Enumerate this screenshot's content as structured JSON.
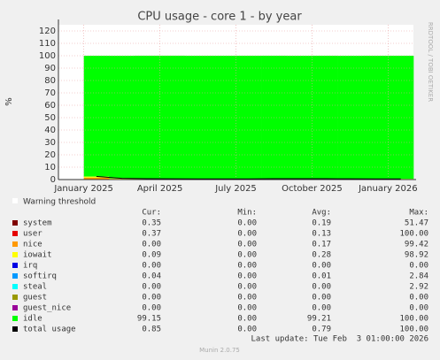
{
  "chart_data": {
    "type": "stacked-area",
    "title": "CPU usage - core 1 - by year",
    "y_label": "%",
    "side_text": "RRDTOOL / TOBI OETIKER",
    "x": [
      "2024-12",
      "2025-01",
      "2025-02",
      "2025-03",
      "2025-04",
      "2025-05",
      "2025-06",
      "2025-07",
      "2025-08",
      "2025-09",
      "2025-10",
      "2025-11",
      "2025-12",
      "2026-01"
    ],
    "xticks": [
      {
        "value": "2025-01",
        "label": "January 2025"
      },
      {
        "value": "2025-04",
        "label": "April 2025"
      },
      {
        "value": "2025-07",
        "label": "July 2025"
      },
      {
        "value": "2025-10",
        "label": "October 2025"
      },
      {
        "value": "2026-01",
        "label": "January 2026"
      }
    ],
    "ylim": [
      0,
      125
    ],
    "yticks": [
      0,
      10,
      20,
      30,
      40,
      50,
      60,
      70,
      80,
      90,
      100,
      110,
      120
    ],
    "grid": true,
    "threshold_label": "Warning threshold",
    "legend_headers": [
      "Cur:",
      "Min:",
      "Avg:",
      "Max:"
    ],
    "series": [
      {
        "name": "system",
        "color": "#7f0000",
        "values": [
          null,
          0.2,
          0.2,
          0.18,
          0.2,
          0.17,
          0.19,
          0.2,
          0.18,
          0.2,
          0.19,
          0.19,
          0.18,
          0.2
        ],
        "stats": [
          "0.35",
          "0.00",
          "0.19",
          "51.47"
        ]
      },
      {
        "name": "user",
        "color": "#e50000",
        "values": [
          null,
          0.15,
          0.12,
          0.13,
          0.12,
          0.13,
          0.12,
          0.13,
          0.12,
          0.13,
          0.14,
          0.12,
          0.13,
          0.13
        ],
        "stats": [
          "0.37",
          "0.00",
          "0.13",
          "100.00"
        ]
      },
      {
        "name": "nice",
        "color": "#ff9900",
        "values": [
          null,
          1.2,
          0.2,
          0.1,
          0.1,
          0.05,
          0.05,
          0.05,
          0.1,
          0.1,
          0.1,
          0.05,
          0.05,
          0.05
        ],
        "stats": [
          "0.00",
          "0.00",
          "0.17",
          "99.42"
        ]
      },
      {
        "name": "iowait",
        "color": "#ffff00",
        "values": [
          null,
          0.9,
          0.4,
          0.3,
          0.2,
          0.2,
          0.2,
          0.2,
          0.3,
          0.3,
          0.25,
          0.25,
          0.2,
          0.2
        ],
        "stats": [
          "0.09",
          "0.00",
          "0.28",
          "98.92"
        ]
      },
      {
        "name": "irq",
        "color": "#0000e5",
        "values": [
          null,
          0,
          0,
          0,
          0,
          0,
          0,
          0,
          0,
          0,
          0,
          0,
          0,
          0
        ],
        "stats": [
          "0.00",
          "0.00",
          "0.00",
          "0.00"
        ]
      },
      {
        "name": "softirq",
        "color": "#0099ff",
        "values": [
          null,
          0.02,
          0.01,
          0.01,
          0.01,
          0.01,
          0.01,
          0.01,
          0.01,
          0.01,
          0.01,
          0.01,
          0.01,
          0.01
        ],
        "stats": [
          "0.04",
          "0.00",
          "0.01",
          "2.84"
        ]
      },
      {
        "name": "steal",
        "color": "#00ffff",
        "values": [
          null,
          0,
          0,
          0,
          0,
          0,
          0,
          0,
          0,
          0,
          0,
          0,
          0,
          0
        ],
        "stats": [
          "0.00",
          "0.00",
          "0.00",
          "2.92"
        ]
      },
      {
        "name": "guest",
        "color": "#999900",
        "values": [
          null,
          0,
          0,
          0,
          0,
          0,
          0,
          0,
          0,
          0,
          0,
          0,
          0,
          0
        ],
        "stats": [
          "0.00",
          "0.00",
          "0.00",
          "0.00"
        ]
      },
      {
        "name": "guest_nice",
        "color": "#990099",
        "values": [
          null,
          0,
          0,
          0,
          0,
          0,
          0,
          0,
          0,
          0,
          0,
          0,
          0,
          0
        ],
        "stats": [
          "0.00",
          "0.00",
          "0.00",
          "0.00"
        ]
      },
      {
        "name": "idle",
        "color": "#00ff00",
        "values": [
          null,
          97.5,
          99.0,
          99.3,
          99.4,
          99.4,
          99.4,
          99.4,
          99.3,
          99.2,
          99.3,
          99.3,
          99.4,
          99.4
        ],
        "stats": [
          "99.15",
          "0.00",
          "99.21",
          "100.00"
        ]
      },
      {
        "name": "total usage",
        "color": "#000000",
        "line": true,
        "values": [
          null,
          2.5,
          1,
          0.7,
          0.6,
          0.55,
          0.55,
          0.55,
          0.7,
          0.7,
          0.7,
          0.6,
          0.55,
          0.55
        ],
        "stats": [
          "0.85",
          "0.00",
          "0.79",
          "100.00"
        ]
      }
    ],
    "last_update": "Last update: Tue Feb  3 01:00:00 2026",
    "footer": "Munin 2.0.75"
  }
}
